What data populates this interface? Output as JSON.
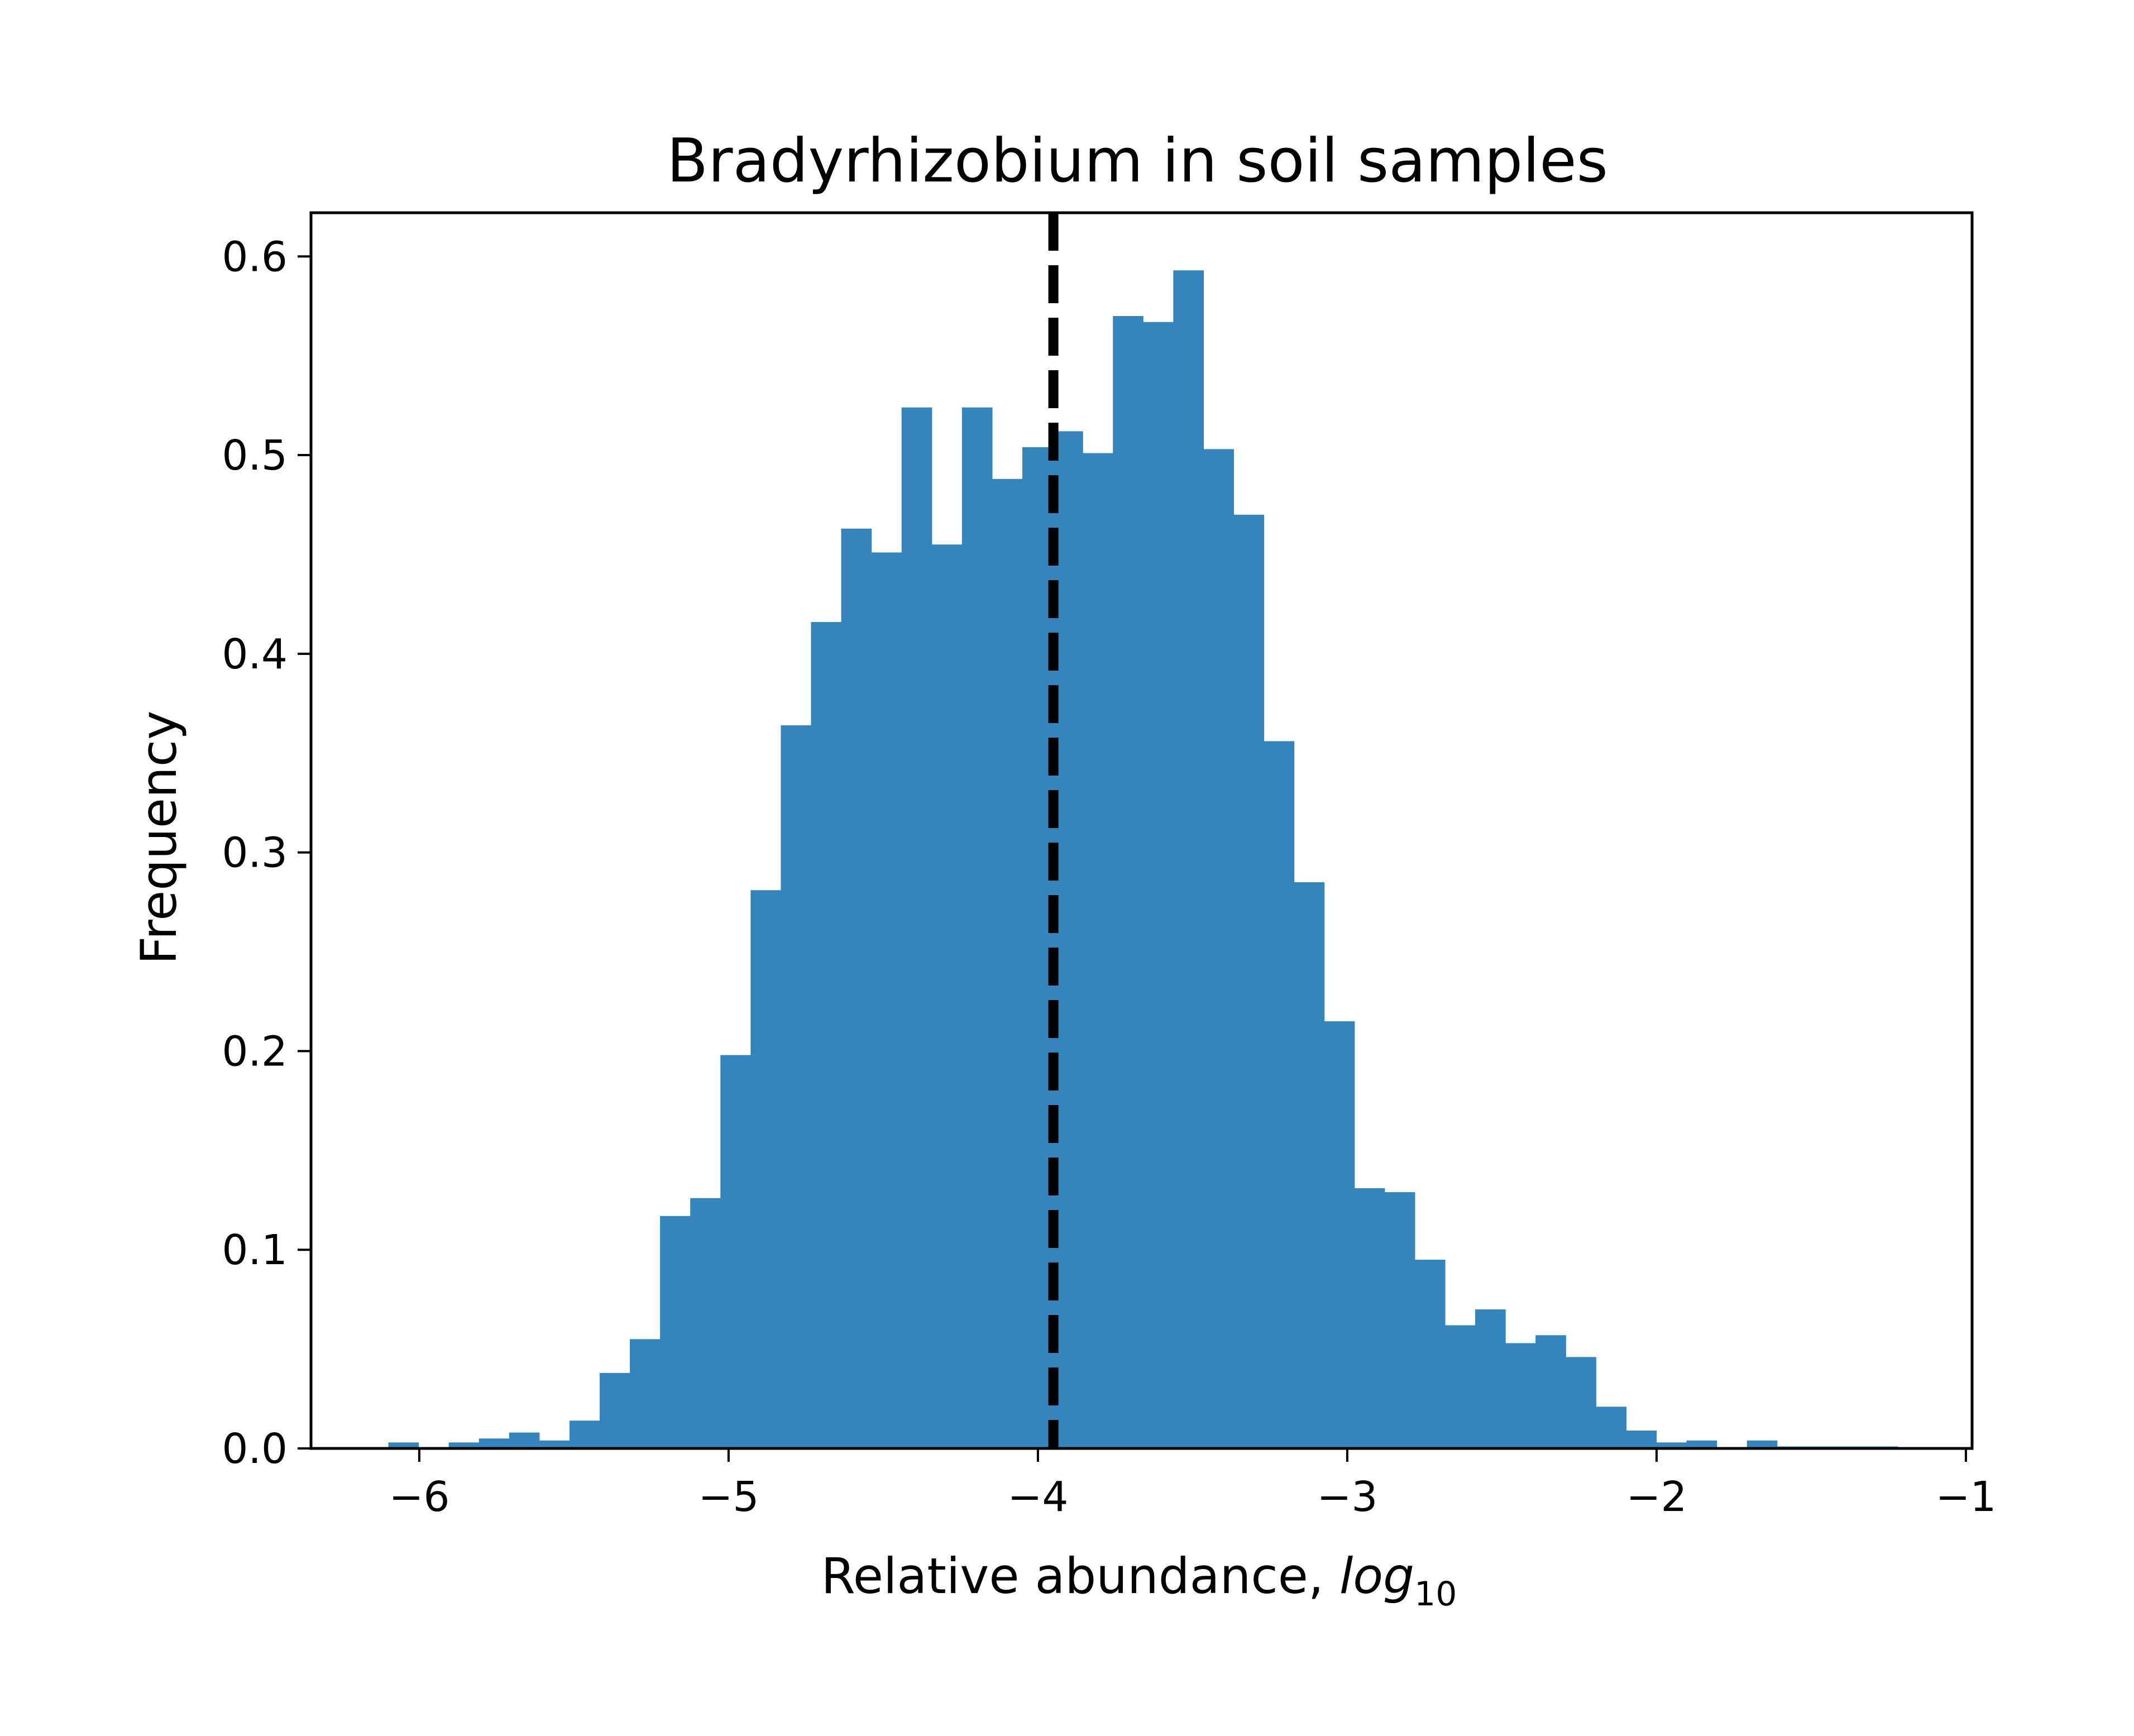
{
  "chart_data": {
    "type": "bar",
    "title": "Bradyrhizobium in soil samples",
    "xlabel": "Relative abundance,",
    "xlabel_math_main": "log",
    "xlabel_math_sub": "10",
    "ylabel": "Frequency",
    "xlim": [
      -6.35,
      -0.98
    ],
    "ylim": [
      0,
      0.622
    ],
    "x_ticks": [
      -6,
      -5,
      -4,
      -3,
      -2,
      -1
    ],
    "x_tick_labels": [
      "−6",
      "−5",
      "−4",
      "−3",
      "−2",
      "−1"
    ],
    "y_ticks": [
      0.0,
      0.1,
      0.2,
      0.3,
      0.4,
      0.5,
      0.6
    ],
    "y_tick_labels": [
      "0.0",
      "0.1",
      "0.2",
      "0.3",
      "0.4",
      "0.5",
      "0.6"
    ],
    "grid": false,
    "bin_start": -6.1,
    "bin_width": 0.0976,
    "values": [
      0.003,
      0.0,
      0.003,
      0.005,
      0.008,
      0.004,
      0.014,
      0.038,
      0.055,
      0.117,
      0.126,
      0.198,
      0.281,
      0.364,
      0.416,
      0.463,
      0.451,
      0.524,
      0.455,
      0.524,
      0.488,
      0.504,
      0.512,
      0.501,
      0.57,
      0.567,
      0.593,
      0.503,
      0.47,
      0.356,
      0.285,
      0.215,
      0.131,
      0.129,
      0.095,
      0.062,
      0.07,
      0.053,
      0.057,
      0.046,
      0.021,
      0.009,
      0.003,
      0.004,
      0.0,
      0.004,
      0.001,
      0.001,
      0.001,
      0.001
    ],
    "bar_color": "#3684bc",
    "reference_line": {
      "x": -3.95,
      "style": "dashed",
      "color": "#000000"
    }
  }
}
